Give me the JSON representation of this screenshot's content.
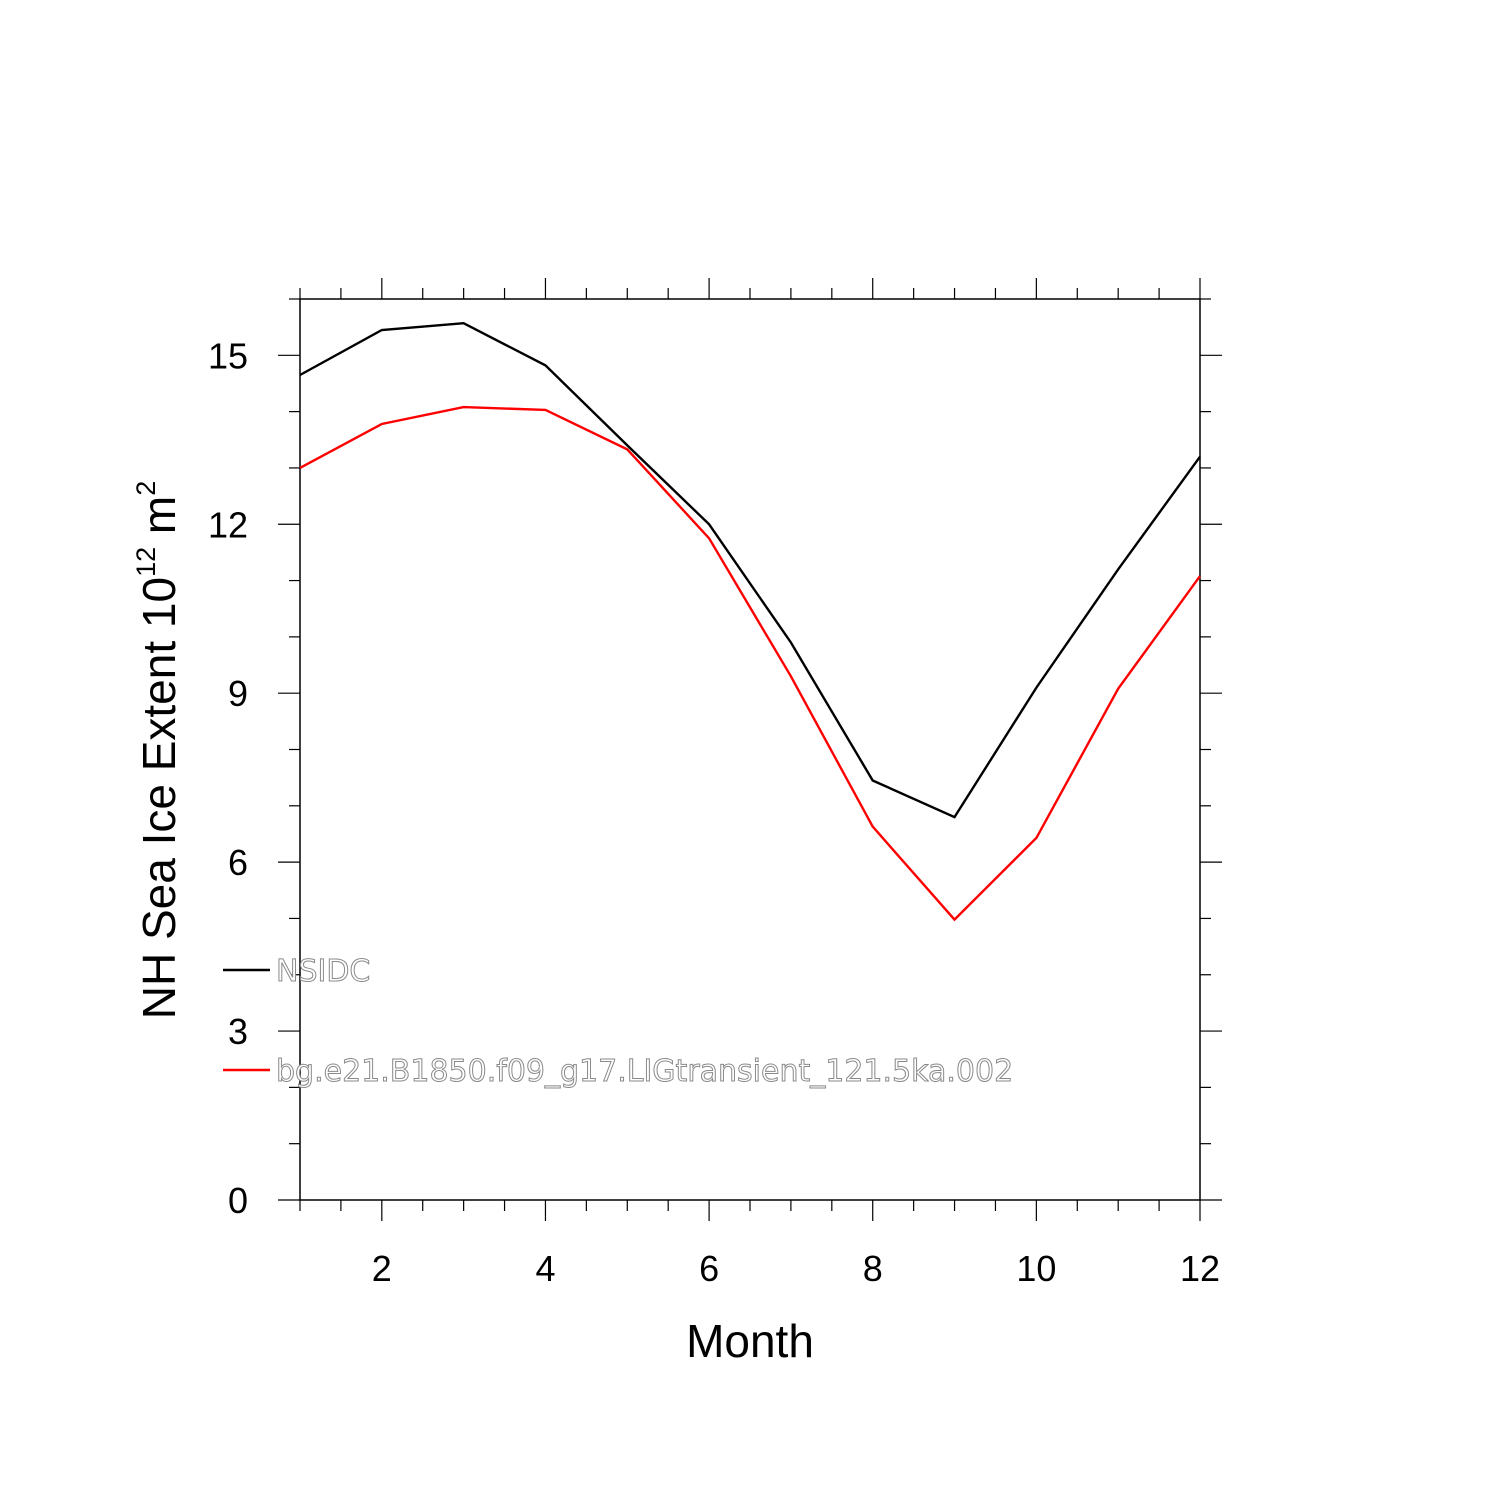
{
  "chart_data": {
    "type": "line",
    "xlabel": "Month",
    "ylabel": {
      "prefix": "NH Sea Ice Extent 10",
      "exp1": "12",
      "mid": " m",
      "exp2": "2"
    },
    "xlim": [
      1,
      12
    ],
    "ylim": [
      0,
      16
    ],
    "x_ticks": [
      2,
      4,
      6,
      8,
      10,
      12
    ],
    "y_ticks": [
      0,
      3,
      6,
      9,
      12,
      15
    ],
    "x_minor_step": 0.5,
    "y_minor_step": 1,
    "x": [
      1,
      2,
      3,
      4,
      5,
      6,
      7,
      8,
      9,
      10,
      11,
      12
    ],
    "series": [
      {
        "name": "NSIDC",
        "color": "#000000",
        "values": [
          14.65,
          15.45,
          15.57,
          14.82,
          13.4,
          12.0,
          9.9,
          7.45,
          6.8,
          9.1,
          11.2,
          13.2
        ]
      },
      {
        "name": "bg.e21.B1850.f09_g17.LIGtransient_121.5ka.002",
        "color": "#ff0000",
        "values": [
          13.0,
          13.78,
          14.08,
          14.03,
          13.33,
          11.75,
          9.3,
          6.63,
          4.98,
          6.43,
          9.08,
          11.08
        ]
      }
    ],
    "legend_position": "lower-left inside",
    "grid": false
  }
}
